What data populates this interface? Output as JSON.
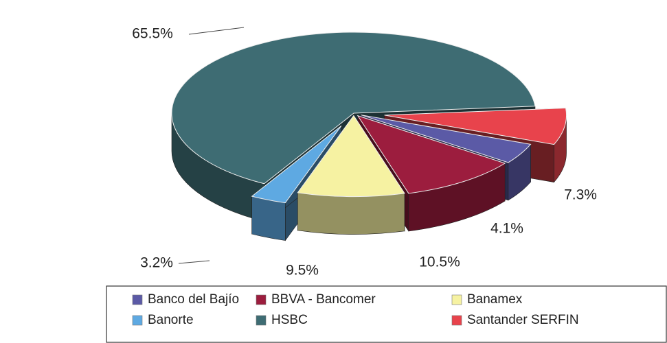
{
  "chart_data": {
    "type": "pie",
    "categories": [
      "Banco del Bajío",
      "BBVA - Bancomer",
      "Banamex",
      "Banorte",
      "HSBC",
      "Santander SERFIN"
    ],
    "values": [
      4.1,
      10.5,
      9.5,
      3.2,
      65.5,
      7.3
    ],
    "value_labels": [
      "4.1%",
      "10.5%",
      "9.5%",
      "3.2%",
      "65.5%",
      "7.3%"
    ],
    "colors": [
      "#5b5aa6",
      "#9c1d3e",
      "#f6f2a2",
      "#5ea9e2",
      "#3e6c73",
      "#e8434c"
    ],
    "legend": "bottom"
  }
}
